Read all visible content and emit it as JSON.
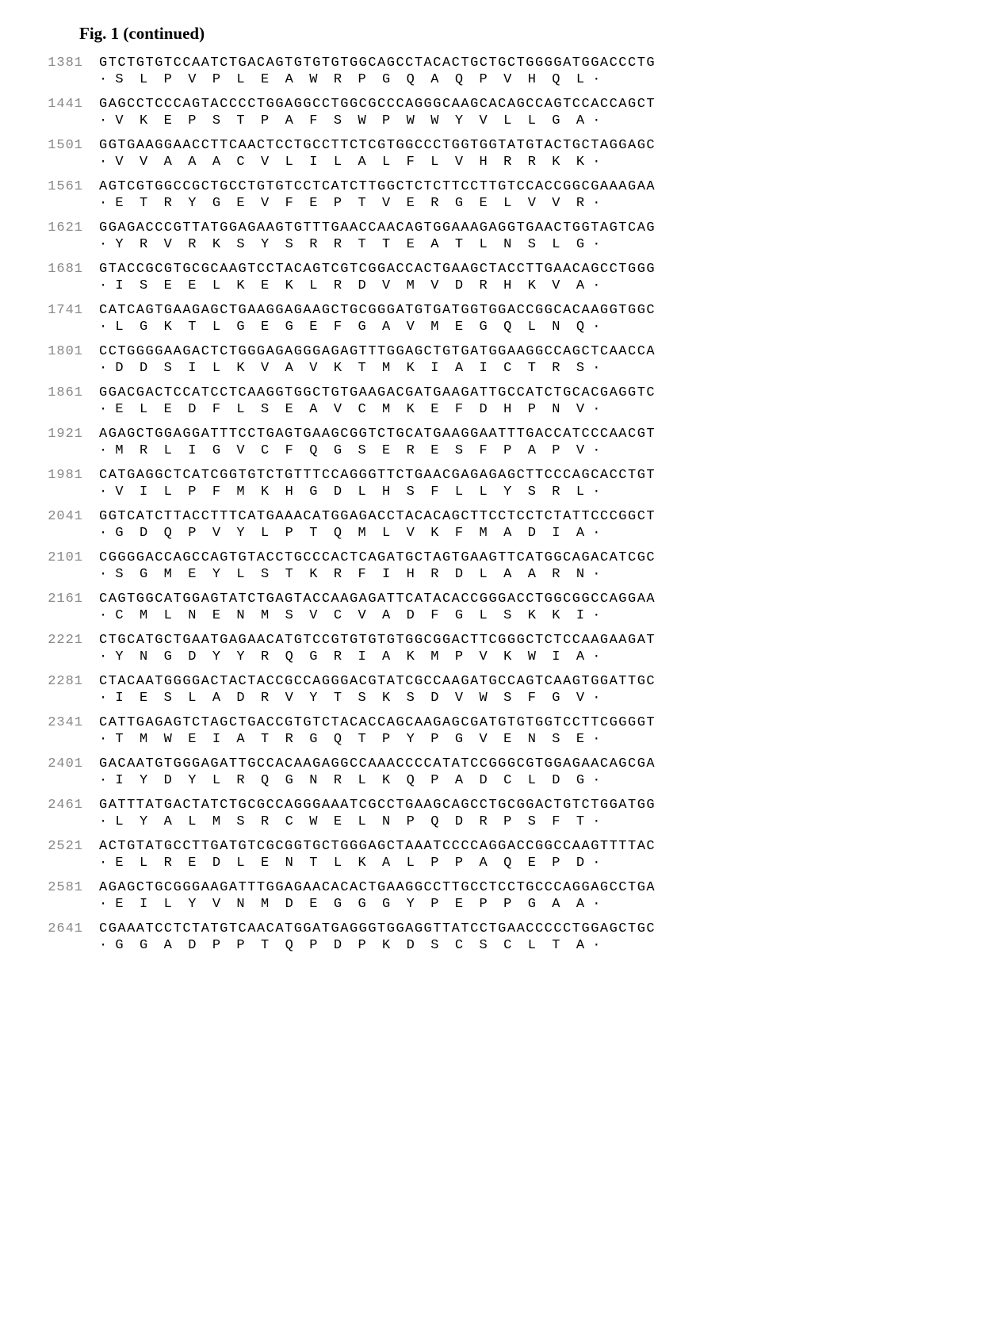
{
  "title": "Fig. 1 (continued)",
  "fontSize": {
    "title": 21,
    "sequence": 17
  },
  "colors": {
    "background": "#ffffff",
    "text": "#000000",
    "positionLabel": "#888888"
  },
  "rows": [
    {
      "position": "1381",
      "nucleotide": "GTCTGTGTCCAATCTGACAGTGTGTGTGGCAGCCTACACTGCTGCTGGGGATGGACCCTG",
      "amino": "· S  L  P  V  P  L  E  A  W  R  P  G  Q  A  Q  P  V  H  Q  L ·"
    },
    {
      "position": "1441",
      "nucleotide": "GAGCCTCCCAGTACCCCTGGAGGCCTGGCGCCCAGGGCAAGCACAGCCAGTCCACCAGCT",
      "amino": "· V  K  E  P  S  T  P  A  F  S  W  P  W  W  Y  V  L  L  G  A ·"
    },
    {
      "position": "1501",
      "nucleotide": "GGTGAAGGAACCTTCAACTCCTGCCTTCTCGTGGCCCTGGTGGTATGTACTGCTAGGAGC",
      "amino": "· V  V  A  A  A  C  V  L  I  L  A  L  F  L  V  H  R  R  K  K ·"
    },
    {
      "position": "1561",
      "nucleotide": "AGTCGTGGCCGCTGCCTGTGTCCTCATCTTGGCTCTCTTCCTTGTCCACCGGCGAAAGAA",
      "amino": "· E  T  R  Y  G  E  V  F  E  P  T  V  E  R  G  E  L  V  V  R ·"
    },
    {
      "position": "1621",
      "nucleotide": "GGAGACCCGTTATGGAGAAGTGTTTGAACCAACAGTGGAAAGAGGTGAACTGGTAGTCAG",
      "amino": "· Y  R  V  R  K  S  Y  S  R  R  T  T  E  A  T  L  N  S  L  G ·"
    },
    {
      "position": "1681",
      "nucleotide": "GTACCGCGTGCGCAAGTCCTACAGTCGTCGGACCACTGAAGCTACCTTGAACAGCCTGGG",
      "amino": "· I  S  E  E  L  K  E  K  L  R  D  V  M  V  D  R  H  K  V  A ·"
    },
    {
      "position": "1741",
      "nucleotide": "CATCAGTGAAGAGCTGAAGGAGAAGCTGCGGGATGTGATGGTGGACCGGCACAAGGTGGC",
      "amino": "· L  G  K  T  L  G  E  G  E  F  G  A  V  M  E  G  Q  L  N  Q ·"
    },
    {
      "position": "1801",
      "nucleotide": "CCTGGGGAAGACTCTGGGAGAGGGAGAGTTTGGAGCTGTGATGGAAGGCCAGCTCAACCA",
      "amino": "· D  D  S  I  L  K  V  A  V  K  T  M  K  I  A  I  C  T  R  S ·"
    },
    {
      "position": "1861",
      "nucleotide": "GGACGACTCCATCCTCAAGGTGGCTGTGAAGACGATGAAGATTGCCATCTGCACGAGGTC",
      "amino": "· E  L  E  D  F  L  S  E  A  V  C  M  K  E  F  D  H  P  N  V ·"
    },
    {
      "position": "1921",
      "nucleotide": "AGAGCTGGAGGATTTCCTGAGTGAAGCGGTCTGCATGAAGGAATTTGACCATCCCAACGT",
      "amino": "· M  R  L  I  G  V  C  F  Q  G  S  E  R  E  S  F  P  A  P  V ·"
    },
    {
      "position": "1981",
      "nucleotide": "CATGAGGCTCATCGGTGTCTGTTTCCAGGGTTCTGAACGAGAGAGCTTCCCAGCACCTGT",
      "amino": "· V  I  L  P  F  M  K  H  G  D  L  H  S  F  L  L  Y  S  R  L ·"
    },
    {
      "position": "2041",
      "nucleotide": "GGTCATCTTACCTTTCATGAAACATGGAGACCTACACAGCTTCCTCCTCTATTCCCGGCT",
      "amino": "· G  D  Q  P  V  Y  L  P  T  Q  M  L  V  K  F  M  A  D  I  A ·"
    },
    {
      "position": "2101",
      "nucleotide": "CGGGGACCAGCCAGTGTACCTGCCCACTCAGATGCTAGTGAAGTTCATGGCAGACATCGC",
      "amino": "· S  G  M  E  Y  L  S  T  K  R  F  I  H  R  D  L  A  A  R  N ·"
    },
    {
      "position": "2161",
      "nucleotide": "CAGTGGCATGGAGTATCTGAGTACCAAGAGATTCATACACCGGGACCTGGCGGCCAGGAA",
      "amino": "· C  M  L  N  E  N  M  S  V  C  V  A  D  F  G  L  S  K  K  I ·"
    },
    {
      "position": "2221",
      "nucleotide": "CTGCATGCTGAATGAGAACATGTCCGTGTGTGTGGCGGACTTCGGGCTCTCCAAGAAGAT",
      "amino": "· Y  N  G  D  Y  Y  R  Q  G  R  I  A  K  M  P  V  K  W  I  A ·"
    },
    {
      "position": "2281",
      "nucleotide": "CTACAATGGGGACTACTACCGCCAGGGACGTATCGCCAAGATGCCAGTCAAGTGGATTGC",
      "amino": "· I  E  S  L  A  D  R  V  Y  T  S  K  S  D  V  W  S  F  G  V ·"
    },
    {
      "position": "2341",
      "nucleotide": "CATTGAGAGTCTAGCTGACCGTGTCTACACCAGCAAGAGCGATGTGTGGTCCTTCGGGGT",
      "amino": "· T  M  W  E  I  A  T  R  G  Q  T  P  Y  P  G  V  E  N  S  E ·"
    },
    {
      "position": "2401",
      "nucleotide": "GACAATGTGGGAGATTGCCACAAGAGGCCAAACCCCATATCCGGGCGTGGAGAACAGCGA",
      "amino": "· I  Y  D  Y  L  R  Q  G  N  R  L  K  Q  P  A  D  C  L  D  G ·"
    },
    {
      "position": "2461",
      "nucleotide": "GATTTATGACTATCTGCGCCAGGGAAATCGCCTGAAGCAGCCTGCGGACTGTCTGGATGG",
      "amino": "· L  Y  A  L  M  S  R  C  W  E  L  N  P  Q  D  R  P  S  F  T ·"
    },
    {
      "position": "2521",
      "nucleotide": "ACTGTATGCCTTGATGTCGCGGTGCTGGGAGCTAAATCCCCAGGACCGGCCAAGTTTTAC",
      "amino": "· E  L  R  E  D  L  E  N  T  L  K  A  L  P  P  A  Q  E  P  D ·"
    },
    {
      "position": "2581",
      "nucleotide": "AGAGCTGCGGGAAGATTTGGAGAACACACTGAAGGCCTTGCCTCCTGCCCAGGAGCCTGA",
      "amino": "· E  I  L  Y  V  N  M  D  E  G  G  G  Y  P  E  P  P  G  A  A ·"
    },
    {
      "position": "2641",
      "nucleotide": "CGAAATCCTCTATGTCAACATGGATGAGGGTGGAGGTTATCCTGAACCCCCTGGAGCTGC",
      "amino": "· G  G  A  D  P  P  T  Q  P  D  P  K  D  S  C  S  C  L  T  A ·"
    }
  ]
}
